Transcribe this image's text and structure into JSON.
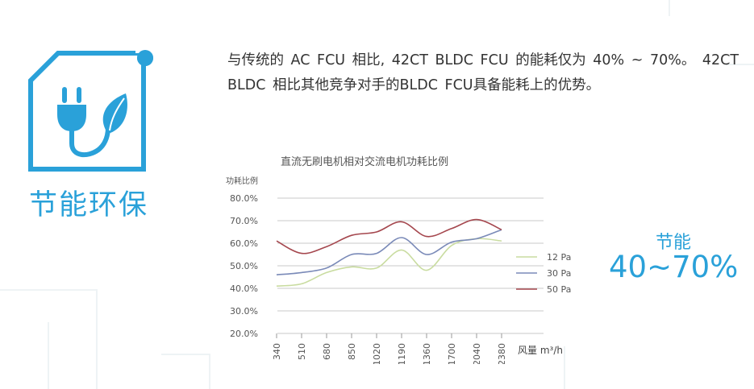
{
  "section": {
    "title": "节能环保",
    "icon": "plug-leaf-icon"
  },
  "description": "与传统的 AC FCU 相比, 42CT BLDC FCU 的能耗仅为 40% ~ 70%。 42CT BLDC 相比其他竞争对手的BLDC FCU具备能耗上的优势。",
  "savings": {
    "label": "节能",
    "value": "40~70%"
  },
  "colors": {
    "accent": "#2aa1d9",
    "grid": "#c9c9c9",
    "series_12pa": "#c9dca0",
    "series_30pa": "#7a8ab8",
    "series_50pa": "#a5474e"
  },
  "chart_data": {
    "type": "line",
    "title": "直流无刷电机相对交流电机功耗比例",
    "ylabel": "功耗比例",
    "xlabel": "风量 m³/h",
    "ylim": [
      20,
      80
    ],
    "yticks": [
      "80.0%",
      "70.0%",
      "60.0%",
      "50.0%",
      "40.0%",
      "30.0%",
      "20.0%"
    ],
    "categories": [
      "340",
      "510",
      "680",
      "850",
      "1020",
      "1190",
      "1360",
      "1700",
      "2040",
      "2380"
    ],
    "grid": true,
    "legend_position": "right",
    "series": [
      {
        "name": "12 Pa",
        "values": [
          41,
          42,
          47,
          49.5,
          49,
          57,
          48,
          59,
          62,
          61
        ]
      },
      {
        "name": "30 Pa",
        "values": [
          46,
          47,
          49,
          55,
          55.5,
          62.5,
          55,
          60.5,
          62,
          66
        ]
      },
      {
        "name": "50 Pa",
        "values": [
          61,
          55.5,
          58.5,
          63.5,
          65,
          69.5,
          63,
          66.5,
          70.5,
          66
        ]
      }
    ]
  }
}
